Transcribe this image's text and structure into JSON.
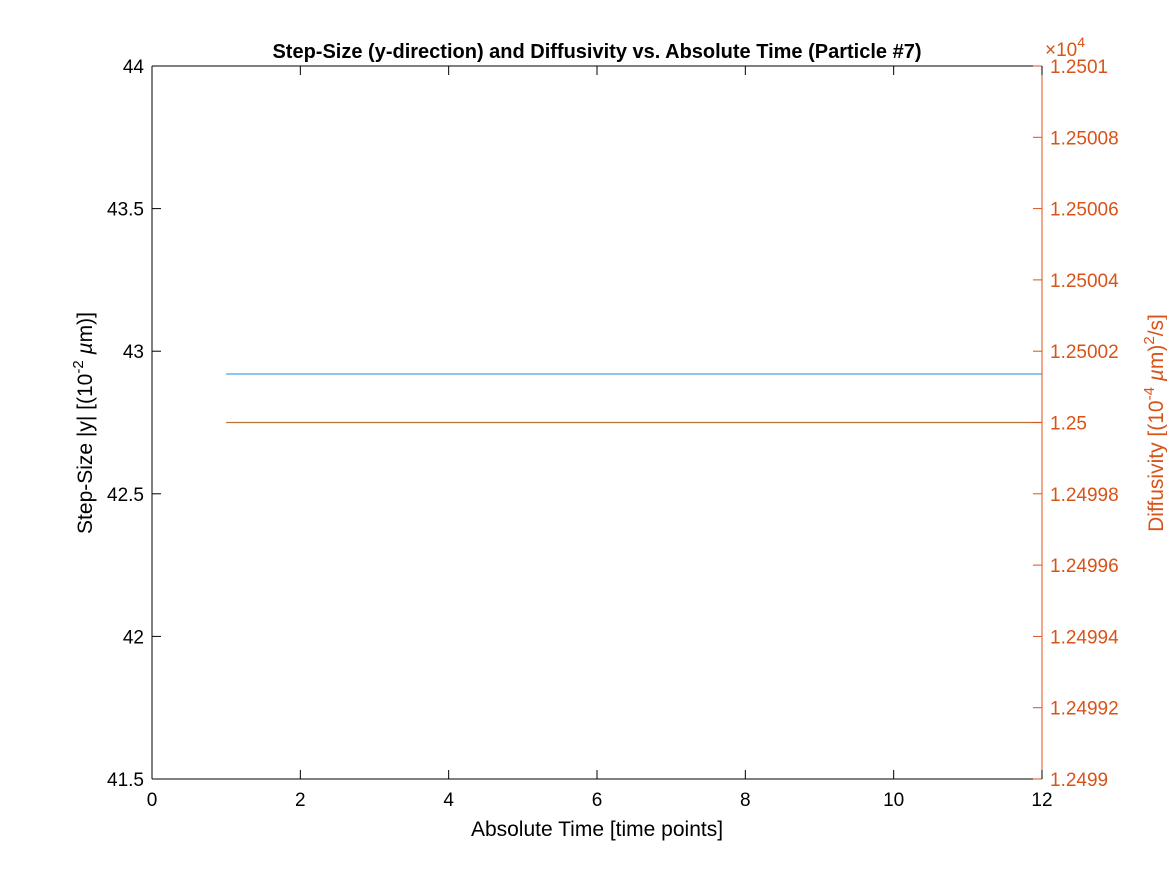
{
  "chart_data": {
    "type": "line",
    "title": "Step-Size (y-direction) and Diffusivity vs. Absolute Time (Particle #7)",
    "xlabel": "Absolute Time [time points]",
    "xlim": [
      0,
      12
    ],
    "x_ticks": [
      0,
      2,
      4,
      6,
      8,
      10,
      12
    ],
    "y_left": {
      "label_base": "Step-Size |y| [(10",
      "label_sup": "-2",
      "label_mu": " µ",
      "label_end": "m)]",
      "ylim": [
        41.5,
        44
      ],
      "ticks": [
        41.5,
        42,
        42.5,
        43,
        43.5,
        44
      ],
      "color": "#000000"
    },
    "y_right": {
      "label_base": "Diffusivity [(10",
      "label_sup1": "-4",
      "label_mu": " µ",
      "label_mid": "m)",
      "label_sup2": "2",
      "label_end": "/s]",
      "exponent_prefix": "×10",
      "exponent_power": "4",
      "ylim": [
        1.2499,
        1.2501
      ],
      "ticks": [
        1.2499,
        1.24992,
        1.24994,
        1.24996,
        1.24998,
        1.25,
        1.25002,
        1.25004,
        1.25006,
        1.25008,
        1.2501
      ],
      "tick_labels": [
        "1.2499",
        "1.24992",
        "1.24994",
        "1.24996",
        "1.24998",
        "1.25",
        "1.25002",
        "1.25004",
        "1.25006",
        "1.25008",
        "1.2501"
      ],
      "color": "#D95319"
    },
    "series": [
      {
        "axis": "left",
        "color": "#4DA0E8",
        "x": [
          1,
          12
        ],
        "y": [
          42.92,
          42.92
        ]
      },
      {
        "axis": "right",
        "color": "#B87333",
        "x": [
          1,
          12
        ],
        "y": [
          1.25,
          1.25
        ]
      }
    ],
    "grid": false,
    "legend": "none"
  }
}
